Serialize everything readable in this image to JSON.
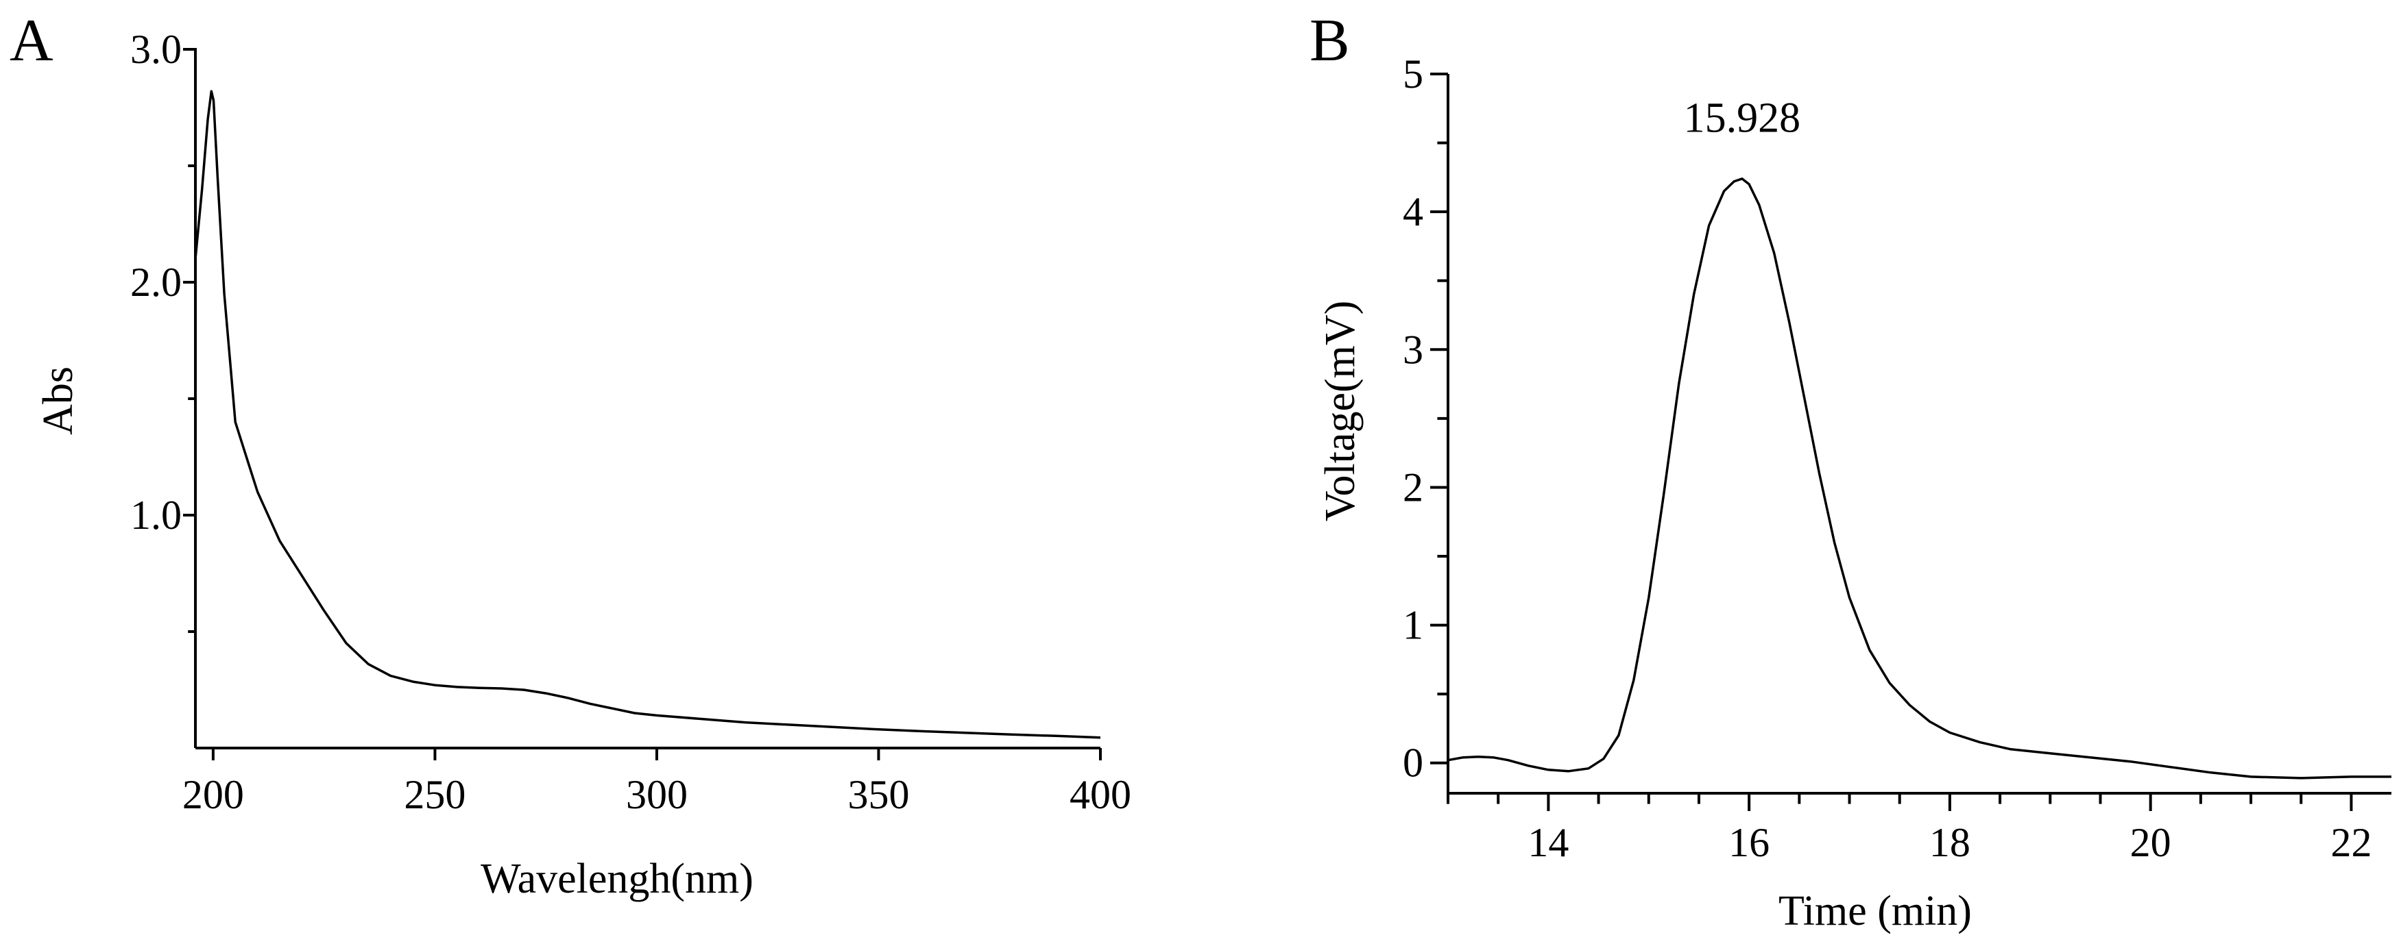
{
  "chart_data": [
    {
      "panel": "A",
      "type": "line",
      "title": "",
      "xlabel": "Wavelengh(nm)",
      "ylabel": "Abs",
      "xlim": [
        196,
        400
      ],
      "ylim": [
        0,
        3.0
      ],
      "x_ticks": [
        200,
        250,
        300,
        350,
        400
      ],
      "x_tick_labels": [
        "200",
        "250",
        "300",
        "350",
        "400"
      ],
      "y_ticks": [
        1.0,
        2.0,
        3.0
      ],
      "y_tick_labels": [
        "1.0",
        "2.0",
        "3.0"
      ],
      "y_minor_ticks": [
        0.5,
        1.5,
        2.5
      ],
      "grid": false,
      "series": [
        {
          "x": [
            196,
            197.5,
            198.8,
            199.6,
            200.1,
            201,
            202.5,
            204,
            205,
            208,
            210,
            215,
            220,
            225,
            230,
            235,
            240,
            245,
            250,
            255,
            260,
            265,
            270,
            275,
            280,
            285,
            290,
            295,
            300,
            310,
            320,
            330,
            340,
            350,
            360,
            370,
            380,
            390,
            400
          ],
          "y": [
            2.1,
            2.4,
            2.7,
            2.82,
            2.78,
            2.45,
            1.95,
            1.62,
            1.4,
            1.22,
            1.1,
            0.89,
            0.74,
            0.59,
            0.45,
            0.36,
            0.31,
            0.285,
            0.27,
            0.262,
            0.258,
            0.256,
            0.25,
            0.235,
            0.215,
            0.19,
            0.17,
            0.15,
            0.14,
            0.125,
            0.11,
            0.1,
            0.09,
            0.08,
            0.072,
            0.065,
            0.058,
            0.052,
            0.045
          ]
        }
      ]
    },
    {
      "panel": "B",
      "type": "line",
      "title": "",
      "xlabel": "Time (min)",
      "ylabel": "Voltage(mV)",
      "xlim": [
        13.0,
        22.4
      ],
      "ylim": [
        -0.22,
        5.0
      ],
      "x_ticks": [
        14,
        16,
        18,
        20,
        22
      ],
      "x_tick_labels": [
        "14",
        "16",
        "18",
        "20",
        "22"
      ],
      "y_ticks": [
        0,
        1,
        2,
        3,
        4,
        5
      ],
      "y_tick_labels": [
        "0",
        "1",
        "2",
        "3",
        "4",
        "5"
      ],
      "grid": false,
      "annotations": [
        {
          "text": "15.928",
          "x": 15.93,
          "y": 4.58
        }
      ],
      "series": [
        {
          "x": [
            13.0,
            13.15,
            13.3,
            13.45,
            13.6,
            13.8,
            14.0,
            14.2,
            14.4,
            14.55,
            14.7,
            14.85,
            15.0,
            15.15,
            15.3,
            15.45,
            15.6,
            15.75,
            15.85,
            15.93,
            16.0,
            16.1,
            16.25,
            16.4,
            16.55,
            16.7,
            16.85,
            17.0,
            17.2,
            17.4,
            17.6,
            17.8,
            18.0,
            18.3,
            18.6,
            19.0,
            19.4,
            19.8,
            20.2,
            20.6,
            21.0,
            21.5,
            22.0,
            22.4
          ],
          "y": [
            0.02,
            0.04,
            0.045,
            0.04,
            0.02,
            -0.02,
            -0.05,
            -0.06,
            -0.04,
            0.03,
            0.2,
            0.6,
            1.2,
            1.95,
            2.75,
            3.4,
            3.9,
            4.15,
            4.22,
            4.24,
            4.2,
            4.05,
            3.7,
            3.2,
            2.65,
            2.1,
            1.6,
            1.2,
            0.82,
            0.58,
            0.42,
            0.3,
            0.22,
            0.15,
            0.1,
            0.07,
            0.04,
            0.01,
            -0.03,
            -0.07,
            -0.1,
            -0.11,
            -0.1,
            -0.1
          ]
        }
      ]
    }
  ]
}
